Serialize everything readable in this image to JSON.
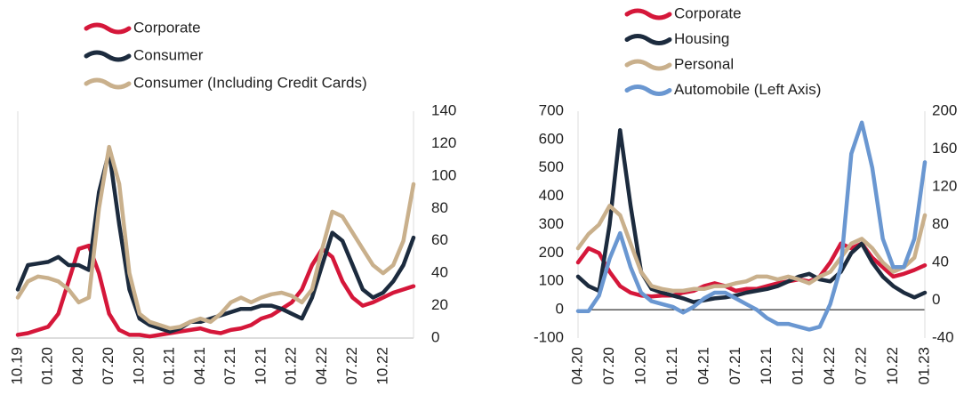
{
  "chart_data": [
    {
      "type": "line",
      "categories": [
        "10.19",
        null,
        null,
        "01.20",
        null,
        null,
        "04.20",
        null,
        null,
        "07.20",
        null,
        null,
        "10.20",
        null,
        null,
        "01.21",
        null,
        null,
        "04.21",
        null,
        null,
        "07.21",
        null,
        null,
        "10.21",
        null,
        null,
        "01.22",
        null,
        null,
        "04.22",
        null,
        null,
        "07.22",
        null,
        null,
        "10.22",
        null,
        null,
        null
      ],
      "ylim": [
        0,
        140
      ],
      "yticks": [
        0,
        20,
        40,
        60,
        80,
        100,
        120,
        140
      ],
      "y_axis_side": "right",
      "series": [
        {
          "name": "Corporate",
          "color": "#d5173a",
          "values": [
            2,
            3,
            5,
            7,
            15,
            35,
            55,
            57,
            40,
            15,
            5,
            2,
            2,
            1,
            2,
            3,
            4,
            5,
            6,
            4,
            3,
            5,
            6,
            8,
            12,
            14,
            18,
            22,
            30,
            45,
            55,
            50,
            35,
            25,
            20,
            22,
            25,
            28,
            30,
            32
          ]
        },
        {
          "name": "Consumer",
          "color": "#1c2b3e",
          "values": [
            30,
            45,
            46,
            47,
            50,
            45,
            45,
            42,
            90,
            115,
            70,
            30,
            12,
            8,
            6,
            4,
            6,
            10,
            10,
            12,
            14,
            16,
            18,
            18,
            20,
            20,
            18,
            15,
            12,
            25,
            45,
            65,
            60,
            45,
            30,
            25,
            28,
            35,
            45,
            62
          ]
        },
        {
          "name": "Consumer (Including Credit Cards)",
          "color": "#c9b08c",
          "values": [
            25,
            35,
            38,
            37,
            35,
            30,
            22,
            25,
            80,
            118,
            95,
            40,
            15,
            10,
            8,
            6,
            7,
            10,
            12,
            10,
            15,
            22,
            25,
            22,
            25,
            27,
            28,
            26,
            22,
            30,
            55,
            78,
            75,
            65,
            55,
            45,
            40,
            45,
            60,
            95
          ]
        }
      ]
    },
    {
      "type": "line",
      "categories": [
        "04.20",
        null,
        null,
        "07.20",
        null,
        null,
        "10.20",
        null,
        null,
        "01.21",
        null,
        null,
        "04.21",
        null,
        null,
        "07.21",
        null,
        null,
        "10.21",
        null,
        null,
        "01.22",
        null,
        null,
        "04.22",
        null,
        null,
        "07.22",
        null,
        null,
        "10.22",
        null,
        null,
        "01.23"
      ],
      "ylim": [
        -100,
        700
      ],
      "yticks": [
        -100,
        0,
        100,
        200,
        300,
        400,
        500,
        600,
        700
      ],
      "y2lim": [
        -40,
        200
      ],
      "y2ticks": [
        -40,
        0,
        40,
        80,
        120,
        160,
        200
      ],
      "series": [
        {
          "name": "Corporate",
          "color": "#d5173a",
          "axis": "y2",
          "values": [
            40,
            55,
            50,
            30,
            15,
            8,
            5,
            4,
            5,
            5,
            8,
            10,
            15,
            18,
            15,
            10,
            12,
            12,
            15,
            18,
            20,
            22,
            20,
            25,
            40,
            60,
            55,
            60,
            45,
            35,
            25,
            28,
            32,
            37
          ]
        },
        {
          "name": "Housing",
          "color": "#1c2b3e",
          "axis": "y2",
          "values": [
            25,
            15,
            10,
            80,
            180,
            100,
            30,
            12,
            8,
            5,
            2,
            -2,
            0,
            2,
            3,
            5,
            8,
            10,
            12,
            15,
            20,
            25,
            28,
            22,
            20,
            30,
            50,
            60,
            40,
            25,
            15,
            8,
            3,
            8
          ]
        },
        {
          "name": "Personal",
          "color": "#c9b08c",
          "axis": "y2",
          "values": [
            55,
            70,
            80,
            100,
            90,
            60,
            30,
            15,
            12,
            10,
            10,
            12,
            12,
            15,
            15,
            18,
            20,
            25,
            25,
            22,
            25,
            22,
            18,
            25,
            30,
            45,
            60,
            65,
            55,
            40,
            30,
            35,
            45,
            90
          ]
        },
        {
          "name": "Automobile (Left Axis)",
          "color": "#6a97d1",
          "values": [
            -5,
            -5,
            50,
            180,
            270,
            150,
            60,
            30,
            20,
            10,
            -10,
            10,
            40,
            60,
            60,
            40,
            20,
            0,
            -30,
            -50,
            -50,
            -60,
            -70,
            -60,
            20,
            150,
            550,
            660,
            500,
            250,
            150,
            150,
            250,
            520
          ]
        }
      ]
    }
  ]
}
